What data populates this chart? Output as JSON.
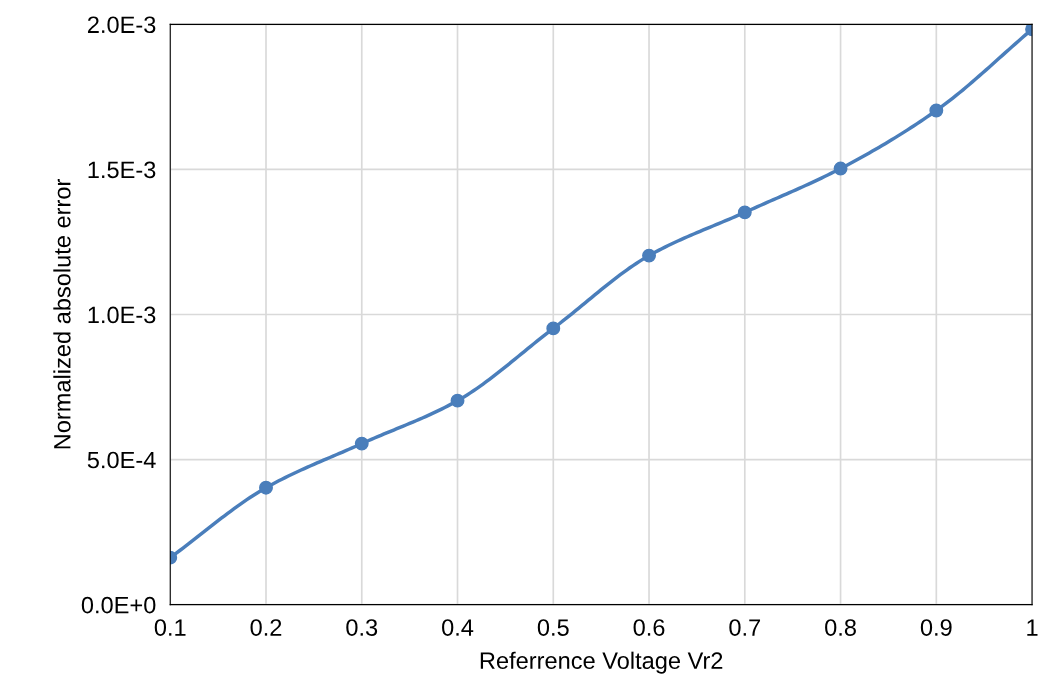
{
  "chart_data": {
    "type": "line",
    "xlabel": "Referrence Voltage Vr2",
    "ylabel": "Normalized absolute error",
    "x": [
      0.1,
      0.2,
      0.3,
      0.4,
      0.5,
      0.6,
      0.7,
      0.8,
      0.9,
      1
    ],
    "series": [
      {
        "color": "#4a7ebb",
        "values": [
          0.000162,
          0.000403,
          0.000555,
          0.000703,
          0.000952,
          0.001203,
          0.001352,
          0.001503,
          0.001703,
          0.001983
        ]
      }
    ],
    "xlim": [
      0.1,
      1
    ],
    "xticks": [
      0.1,
      0.2,
      0.3,
      0.4,
      0.5,
      0.6,
      0.7,
      0.8,
      0.9,
      1
    ],
    "ylim": [
      0,
      0.002
    ],
    "yticks": [
      {
        "value": 0,
        "label": "0.0E+0"
      },
      {
        "value": 0.0005,
        "label": "5.0E-4"
      },
      {
        "value": 0.001,
        "label": "1.0E-3"
      },
      {
        "value": 0.0015,
        "label": "1.5E-3"
      },
      {
        "value": 0.002,
        "label": "2.0E-3"
      }
    ],
    "grid": true,
    "marker": "circle",
    "line_style": "solid"
  }
}
